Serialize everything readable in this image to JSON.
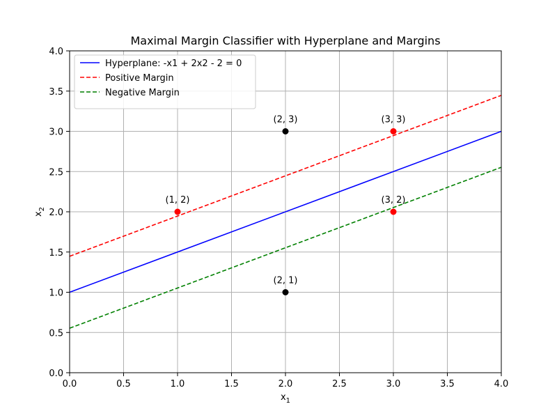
{
  "chart_data": {
    "type": "line",
    "title": "Maximal Margin Classifier with Hyperplane and Margins",
    "xlabel": {
      "base": "x",
      "sub": "1"
    },
    "ylabel": {
      "base": "x",
      "sub": "2"
    },
    "xlim": [
      0,
      4
    ],
    "ylim": [
      0,
      4
    ],
    "xticks": [
      "0.0",
      "0.5",
      "1.0",
      "1.5",
      "2.0",
      "2.5",
      "3.0",
      "3.5",
      "4.0"
    ],
    "yticks": [
      "0.0",
      "0.5",
      "1.0",
      "1.5",
      "2.0",
      "2.5",
      "3.0",
      "3.5",
      "4.0"
    ],
    "grid": true,
    "legend_position": "upper-left",
    "series": [
      {
        "name": "Hyperplane: -x1 + 2x2 - 2 = 0",
        "style": "solid",
        "color": "#0000ff",
        "x": [
          0,
          4
        ],
        "y": [
          1.0,
          3.0
        ]
      },
      {
        "name": "Positive Margin",
        "style": "dashed",
        "color": "#ff0000",
        "x": [
          0,
          4
        ],
        "y": [
          1.447,
          3.447
        ]
      },
      {
        "name": "Negative Margin",
        "style": "dashed",
        "color": "#008000",
        "x": [
          0,
          4
        ],
        "y": [
          0.553,
          2.553
        ]
      }
    ],
    "points": [
      {
        "x": 1,
        "y": 2,
        "label": "(1, 2)",
        "color": "#ff0000"
      },
      {
        "x": 2,
        "y": 3,
        "label": "(2, 3)",
        "color": "#000000"
      },
      {
        "x": 3,
        "y": 3,
        "label": "(3, 3)",
        "color": "#ff0000"
      },
      {
        "x": 2,
        "y": 1,
        "label": "(2, 1)",
        "color": "#000000"
      },
      {
        "x": 3,
        "y": 2,
        "label": "(3, 2)",
        "color": "#ff0000"
      }
    ]
  }
}
